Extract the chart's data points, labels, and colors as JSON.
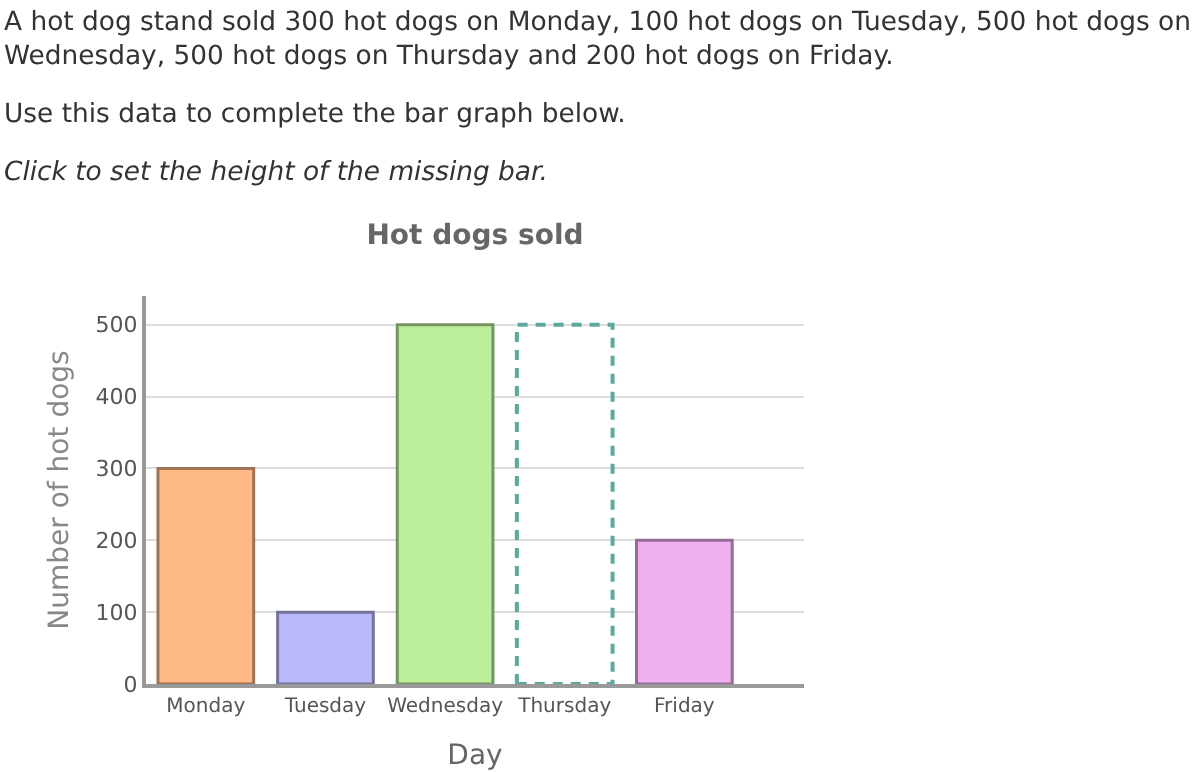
{
  "chart_data": {
    "type": "bar",
    "title": "Hot dogs sold",
    "xlabel": "Day",
    "ylabel": "Number of hot dogs",
    "annotations": [
      "A hot dog stand sold 300 hot dogs on Monday, 100 hot dogs on Tuesday, 500 hot dogs on Wednesday, 500 hot dogs on Thursday and 200 hot dogs on Friday.",
      "Use this data to complete the bar graph below.",
      "Click to set the height of the missing bar."
    ],
    "categories": [
      "Monday",
      "Tuesday",
      "Wednesday",
      "Thursday",
      "Friday"
    ],
    "series": [
      {
        "values": [
          300,
          100,
          500,
          null,
          200
        ],
        "colors": [
          "#ffb987",
          "#b9b9f9",
          "#bdef9b",
          null,
          "#efb0ef"
        ]
      },
      {
        "values": [
          null,
          null,
          null,
          500,
          null
        ],
        "color": "#5fa8a0",
        "line_style": "dashed"
      }
    ],
    "ylim": [
      0,
      540
    ],
    "yticks": [
      0,
      100,
      200,
      300,
      400,
      500
    ],
    "grid": "y"
  }
}
